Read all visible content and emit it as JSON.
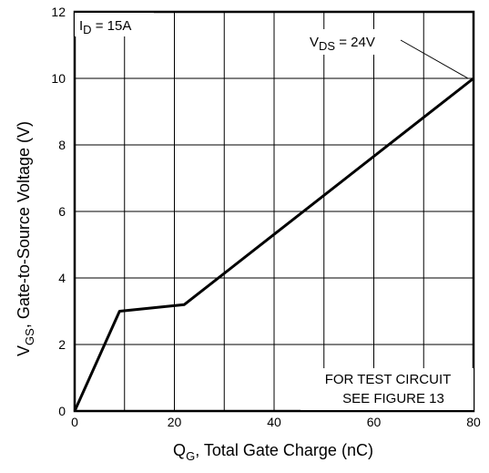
{
  "chart_data": {
    "type": "line",
    "x_ticks": [
      "0",
      "20",
      "40",
      "60",
      "80"
    ],
    "y_ticks": [
      "0",
      "2",
      "4",
      "6",
      "8",
      "10",
      "12"
    ],
    "xlim": [
      0,
      80
    ],
    "ylim": [
      0,
      12
    ],
    "grid": true,
    "series": [
      {
        "x": [
          0,
          9,
          22,
          80
        ],
        "y": [
          0,
          3.0,
          3.2,
          10.0
        ],
        "color": "#000000"
      }
    ],
    "xlabel": {
      "main": "Q",
      "sub": "G",
      "rest": ", Total Gate Charge (nC)"
    },
    "ylabel": {
      "main": "V",
      "sub": "GS",
      "rest": ", Gate-to-Source Voltage (V)"
    },
    "annotations": {
      "current": {
        "main": "I",
        "sub": "D",
        "rest": " = 15A"
      },
      "vds": {
        "main": "V",
        "sub": "DS",
        "rest": " = 24V"
      },
      "test_line1": "FOR TEST CIRCUIT",
      "test_line2": "SEE FIGURE 13"
    }
  }
}
